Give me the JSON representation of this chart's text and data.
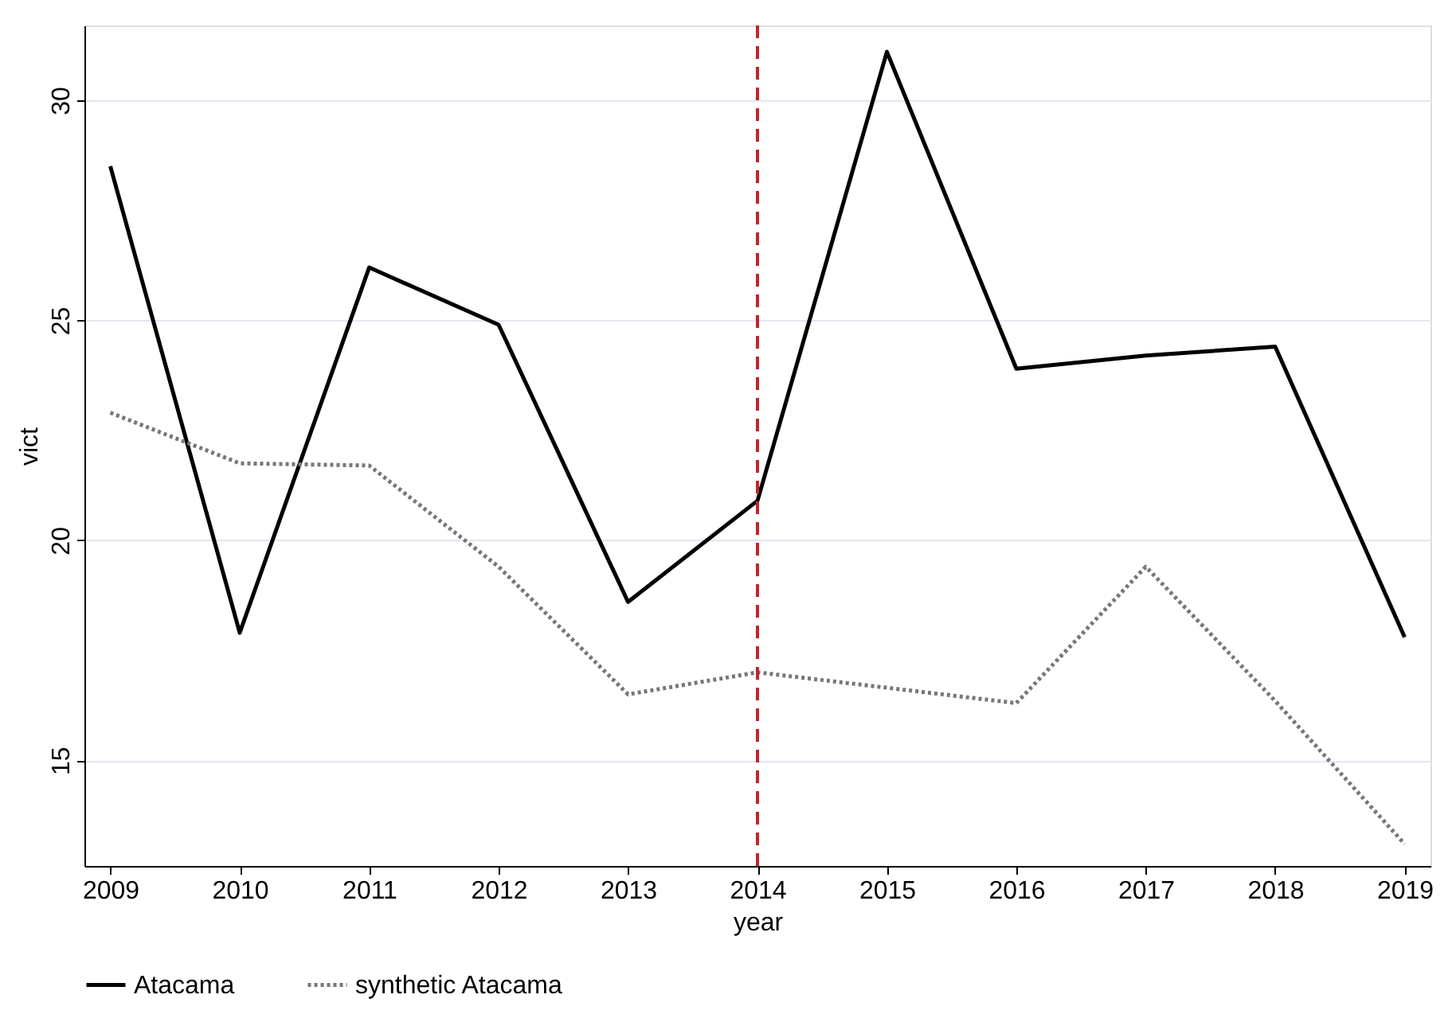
{
  "chart_data": {
    "type": "line",
    "xlabel": "year",
    "ylabel": "vict",
    "x": [
      2009,
      2010,
      2011,
      2012,
      2013,
      2014,
      2015,
      2016,
      2017,
      2018,
      2019
    ],
    "series": [
      {
        "name": "Atacama",
        "color": "#000000",
        "line_style": "solid",
        "values": [
          28.5,
          17.9,
          26.2,
          24.9,
          18.6,
          20.9,
          31.1,
          23.9,
          24.2,
          24.4,
          17.8
        ]
      },
      {
        "name": "synthetic Atacama",
        "color": "#777777",
        "line_style": "dotted",
        "values": [
          22.9,
          21.75,
          21.7,
          19.4,
          16.5,
          17.0,
          16.65,
          16.3,
          19.4,
          16.35,
          13.1
        ]
      }
    ],
    "xlim": [
      2008.8,
      2019.2
    ],
    "xticks": [
      2009,
      2010,
      2011,
      2012,
      2013,
      2014,
      2015,
      2016,
      2017,
      2018,
      2019
    ],
    "ylim": [
      12.6,
      31.7
    ],
    "yticks": [
      15,
      20,
      25,
      30
    ],
    "ref_lines": [
      {
        "axis": "x",
        "value": 2014,
        "color": "#c0262b",
        "line_style": "dashed"
      }
    ],
    "grid": "y",
    "legend": "bottom",
    "marker": "none"
  }
}
